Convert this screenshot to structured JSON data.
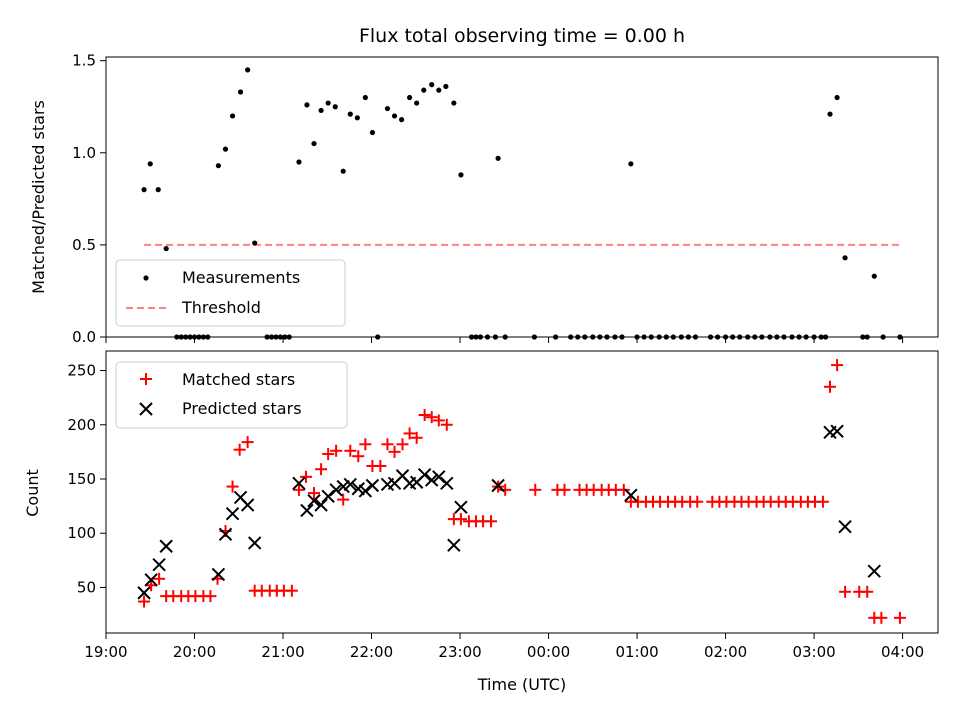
{
  "chart_data": [
    {
      "type": "scatter",
      "title": "Flux total observing time = 0.00 h",
      "xlabel": "",
      "ylabel": "Matched/Predicted stars",
      "x_unit": "time (UTC), decimal hours; values past 24 are after midnight",
      "xlim": [
        19.0,
        28.4
      ],
      "ylim": [
        0.0,
        1.52
      ],
      "yticks": [
        0.0,
        0.5,
        1.0,
        1.5
      ],
      "ytick_labels": [
        "0.0",
        "0.5",
        "1.0",
        "1.5"
      ],
      "legend": {
        "placement": "lower-left",
        "entries": [
          "Measurements",
          "Threshold"
        ]
      },
      "series": [
        {
          "name": "Measurements",
          "marker": "dot",
          "color": "#000000",
          "points": [
            [
              19.43,
              0.8
            ],
            [
              19.5,
              0.94
            ],
            [
              19.59,
              0.8
            ],
            [
              19.68,
              0.48
            ],
            [
              20.27,
              0.93
            ],
            [
              20.35,
              1.02
            ],
            [
              20.43,
              1.2
            ],
            [
              20.52,
              1.33
            ],
            [
              20.6,
              1.45
            ],
            [
              20.68,
              0.51
            ],
            [
              21.18,
              0.95
            ],
            [
              21.27,
              1.26
            ],
            [
              21.35,
              1.05
            ],
            [
              21.43,
              1.23
            ],
            [
              21.51,
              1.27
            ],
            [
              21.59,
              1.25
            ],
            [
              21.68,
              0.9
            ],
            [
              21.76,
              1.21
            ],
            [
              21.84,
              1.19
            ],
            [
              21.93,
              1.3
            ],
            [
              22.01,
              1.11
            ],
            [
              22.18,
              1.24
            ],
            [
              22.26,
              1.2
            ],
            [
              22.34,
              1.18
            ],
            [
              22.43,
              1.3
            ],
            [
              22.51,
              1.27
            ],
            [
              22.59,
              1.34
            ],
            [
              22.68,
              1.37
            ],
            [
              22.76,
              1.34
            ],
            [
              22.84,
              1.36
            ],
            [
              22.93,
              1.27
            ],
            [
              23.01,
              0.88
            ],
            [
              23.43,
              0.97
            ],
            [
              24.93,
              0.94
            ],
            [
              27.18,
              1.21
            ],
            [
              27.26,
              1.3
            ],
            [
              27.35,
              0.43
            ],
            [
              27.68,
              0.33
            ],
            [
              19.8,
              0.0
            ],
            [
              19.85,
              0.0
            ],
            [
              19.9,
              0.0
            ],
            [
              19.95,
              0.0
            ],
            [
              20.0,
              0.0
            ],
            [
              20.05,
              0.0
            ],
            [
              20.1,
              0.0
            ],
            [
              20.15,
              0.0
            ],
            [
              20.82,
              0.0
            ],
            [
              20.87,
              0.0
            ],
            [
              20.92,
              0.0
            ],
            [
              20.97,
              0.0
            ],
            [
              21.02,
              0.0
            ],
            [
              21.07,
              0.0
            ],
            [
              22.07,
              0.0
            ],
            [
              23.13,
              0.0
            ],
            [
              23.18,
              0.0
            ],
            [
              23.23,
              0.0
            ],
            [
              23.31,
              0.0
            ],
            [
              23.4,
              0.0
            ],
            [
              23.51,
              0.0
            ],
            [
              23.84,
              0.0
            ],
            [
              24.08,
              0.0
            ],
            [
              24.25,
              0.0
            ],
            [
              24.33,
              0.0
            ],
            [
              24.41,
              0.0
            ],
            [
              24.5,
              0.0
            ],
            [
              24.58,
              0.0
            ],
            [
              24.66,
              0.0
            ],
            [
              24.75,
              0.0
            ],
            [
              24.83,
              0.0
            ],
            [
              25.0,
              0.0
            ],
            [
              25.08,
              0.0
            ],
            [
              25.16,
              0.0
            ],
            [
              25.25,
              0.0
            ],
            [
              25.33,
              0.0
            ],
            [
              25.41,
              0.0
            ],
            [
              25.5,
              0.0
            ],
            [
              25.58,
              0.0
            ],
            [
              25.66,
              0.0
            ],
            [
              25.83,
              0.0
            ],
            [
              25.91,
              0.0
            ],
            [
              26.0,
              0.0
            ],
            [
              26.08,
              0.0
            ],
            [
              26.16,
              0.0
            ],
            [
              26.25,
              0.0
            ],
            [
              26.33,
              0.0
            ],
            [
              26.41,
              0.0
            ],
            [
              26.5,
              0.0
            ],
            [
              26.58,
              0.0
            ],
            [
              26.66,
              0.0
            ],
            [
              26.75,
              0.0
            ],
            [
              26.83,
              0.0
            ],
            [
              26.91,
              0.0
            ],
            [
              27.0,
              0.0
            ],
            [
              27.08,
              0.0
            ],
            [
              27.13,
              0.0
            ],
            [
              27.55,
              0.0
            ],
            [
              27.6,
              0.0
            ],
            [
              27.78,
              0.0
            ],
            [
              27.97,
              0.0
            ]
          ]
        },
        {
          "name": "Threshold",
          "line": "dashed",
          "color": "#ff8080",
          "x": [
            19.43,
            27.97
          ],
          "y": [
            0.5,
            0.5
          ]
        }
      ]
    },
    {
      "type": "scatter",
      "title": "",
      "xlabel": "Time (UTC)",
      "ylabel": "Count",
      "x_unit": "time (UTC), decimal hours; values past 24 are after midnight",
      "xlim": [
        19.0,
        28.4
      ],
      "ylim": [
        8,
        268
      ],
      "xticks": [
        19,
        20,
        21,
        22,
        23,
        24,
        25,
        26,
        27,
        28
      ],
      "xtick_labels": [
        "19:00",
        "20:00",
        "21:00",
        "22:00",
        "23:00",
        "00:00",
        "01:00",
        "02:00",
        "03:00",
        "04:00"
      ],
      "yticks": [
        50,
        100,
        150,
        200,
        250
      ],
      "ytick_labels": [
        "50",
        "100",
        "150",
        "200",
        "250"
      ],
      "legend": {
        "placement": "upper-left",
        "entries": [
          "Matched stars",
          "Predicted stars"
        ]
      },
      "series": [
        {
          "name": "Matched stars",
          "marker": "plus",
          "color": "#ff0000",
          "points": [
            [
              19.43,
              37
            ],
            [
              19.51,
              52
            ],
            [
              19.6,
              58
            ],
            [
              19.68,
              42
            ],
            [
              19.76,
              42
            ],
            [
              19.85,
              42
            ],
            [
              19.93,
              42
            ],
            [
              20.01,
              42
            ],
            [
              20.1,
              42
            ],
            [
              20.18,
              42
            ],
            [
              20.26,
              58
            ],
            [
              20.35,
              102
            ],
            [
              20.43,
              143
            ],
            [
              20.51,
              177
            ],
            [
              20.6,
              184
            ],
            [
              20.68,
              47
            ],
            [
              20.76,
              47
            ],
            [
              20.85,
              47
            ],
            [
              20.93,
              47
            ],
            [
              21.01,
              47
            ],
            [
              21.1,
              47
            ],
            [
              21.18,
              140
            ],
            [
              21.26,
              152
            ],
            [
              21.35,
              137
            ],
            [
              21.43,
              159
            ],
            [
              21.51,
              173
            ],
            [
              21.6,
              176
            ],
            [
              21.68,
              131
            ],
            [
              21.76,
              176
            ],
            [
              21.85,
              171
            ],
            [
              21.93,
              182
            ],
            [
              22.01,
              162
            ],
            [
              22.1,
              162
            ],
            [
              22.18,
              182
            ],
            [
              22.26,
              175
            ],
            [
              22.35,
              182
            ],
            [
              22.43,
              192
            ],
            [
              22.51,
              188
            ],
            [
              22.6,
              209
            ],
            [
              22.68,
              207
            ],
            [
              22.76,
              204
            ],
            [
              22.85,
              200
            ],
            [
              22.93,
              113
            ],
            [
              23.01,
              113
            ],
            [
              23.1,
              111
            ],
            [
              23.18,
              111
            ],
            [
              23.26,
              111
            ],
            [
              23.35,
              111
            ],
            [
              23.43,
              143
            ],
            [
              23.51,
              140
            ],
            [
              23.85,
              140
            ],
            [
              24.1,
              140
            ],
            [
              24.18,
              140
            ],
            [
              24.35,
              140
            ],
            [
              24.43,
              140
            ],
            [
              24.51,
              140
            ],
            [
              24.6,
              140
            ],
            [
              24.68,
              140
            ],
            [
              24.76,
              140
            ],
            [
              24.85,
              140
            ],
            [
              24.93,
              129
            ],
            [
              25.01,
              129
            ],
            [
              25.1,
              129
            ],
            [
              25.18,
              129
            ],
            [
              25.26,
              129
            ],
            [
              25.35,
              129
            ],
            [
              25.43,
              129
            ],
            [
              25.51,
              129
            ],
            [
              25.6,
              129
            ],
            [
              25.68,
              129
            ],
            [
              25.85,
              129
            ],
            [
              25.93,
              129
            ],
            [
              26.01,
              129
            ],
            [
              26.1,
              129
            ],
            [
              26.18,
              129
            ],
            [
              26.26,
              129
            ],
            [
              26.35,
              129
            ],
            [
              26.43,
              129
            ],
            [
              26.51,
              129
            ],
            [
              26.6,
              129
            ],
            [
              26.68,
              129
            ],
            [
              26.76,
              129
            ],
            [
              26.85,
              129
            ],
            [
              26.93,
              129
            ],
            [
              27.01,
              129
            ],
            [
              27.1,
              129
            ],
            [
              27.18,
              235
            ],
            [
              27.26,
              255
            ],
            [
              27.35,
              46
            ],
            [
              27.51,
              46
            ],
            [
              27.6,
              46
            ],
            [
              27.68,
              22
            ],
            [
              27.76,
              22
            ],
            [
              27.97,
              22
            ]
          ]
        },
        {
          "name": "Predicted stars",
          "marker": "x",
          "color": "#000000",
          "points": [
            [
              19.43,
              45
            ],
            [
              19.51,
              57
            ],
            [
              19.6,
              71
            ],
            [
              19.68,
              88
            ],
            [
              20.27,
              62
            ],
            [
              20.35,
              99
            ],
            [
              20.43,
              118
            ],
            [
              20.52,
              133
            ],
            [
              20.6,
              126
            ],
            [
              20.68,
              91
            ],
            [
              21.18,
              146
            ],
            [
              21.27,
              121
            ],
            [
              21.35,
              130
            ],
            [
              21.43,
              126
            ],
            [
              21.51,
              134
            ],
            [
              21.6,
              140
            ],
            [
              21.68,
              143
            ],
            [
              21.76,
              145
            ],
            [
              21.85,
              141
            ],
            [
              21.93,
              139
            ],
            [
              22.01,
              144
            ],
            [
              22.18,
              145
            ],
            [
              22.26,
              146
            ],
            [
              22.35,
              153
            ],
            [
              22.43,
              146
            ],
            [
              22.51,
              147
            ],
            [
              22.6,
              154
            ],
            [
              22.68,
              149
            ],
            [
              22.76,
              152
            ],
            [
              22.85,
              146
            ],
            [
              22.93,
              89
            ],
            [
              23.01,
              124
            ],
            [
              23.43,
              144
            ],
            [
              24.93,
              135
            ],
            [
              27.18,
              193
            ],
            [
              27.26,
              194
            ],
            [
              27.35,
              106
            ],
            [
              27.68,
              65
            ]
          ]
        }
      ]
    }
  ]
}
